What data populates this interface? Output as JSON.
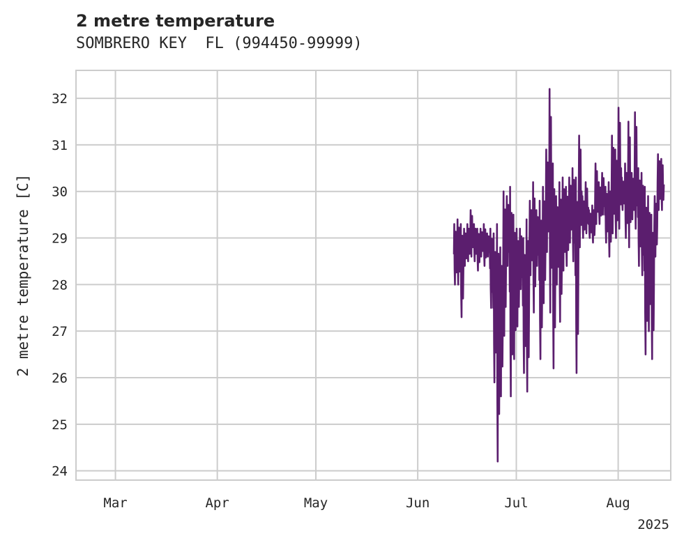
{
  "chart_data": {
    "type": "line",
    "title": "2 metre temperature",
    "subtitle": "SOMBRERO KEY  FL (994450-99999)",
    "xlabel": "",
    "ylabel": "2 metre temperature [C]",
    "x_ticks": [
      "Mar",
      "Apr",
      "May",
      "Jun",
      "Jul",
      "Aug"
    ],
    "x_tick_dates": [
      "2025-03-01",
      "2025-04-01",
      "2025-05-01",
      "2025-06-01",
      "2025-07-01",
      "2025-08-01"
    ],
    "x_offset_label": "2025",
    "xlim": [
      "2025-02-17",
      "2025-08-17"
    ],
    "ylim": [
      23.8,
      32.6
    ],
    "y_ticks": [
      24,
      25,
      26,
      27,
      28,
      29,
      30,
      31,
      32
    ],
    "grid": true,
    "series": [
      {
        "color": "#5b1e6e",
        "x": [
          "2025-06-12",
          "2025-06-13",
          "2025-06-14",
          "2025-06-15",
          "2025-06-16",
          "2025-06-17",
          "2025-06-18",
          "2025-06-19",
          "2025-06-20",
          "2025-06-21",
          "2025-06-22",
          "2025-06-23",
          "2025-06-24",
          "2025-06-25",
          "2025-06-26",
          "2025-06-27",
          "2025-06-28",
          "2025-06-29",
          "2025-06-30",
          "2025-07-01",
          "2025-07-02",
          "2025-07-03",
          "2025-07-04",
          "2025-07-05",
          "2025-07-06",
          "2025-07-07",
          "2025-07-08",
          "2025-07-09",
          "2025-07-10",
          "2025-07-11",
          "2025-07-12",
          "2025-07-13",
          "2025-07-14",
          "2025-07-15",
          "2025-07-16",
          "2025-07-17",
          "2025-07-18",
          "2025-07-19",
          "2025-07-20",
          "2025-07-21",
          "2025-07-22",
          "2025-07-23",
          "2025-07-24",
          "2025-07-25",
          "2025-07-26",
          "2025-07-27",
          "2025-07-28",
          "2025-07-29",
          "2025-07-30",
          "2025-07-31",
          "2025-08-01",
          "2025-08-02",
          "2025-08-03",
          "2025-08-04",
          "2025-08-05",
          "2025-08-06",
          "2025-08-07",
          "2025-08-08",
          "2025-08-09",
          "2025-08-10",
          "2025-08-11",
          "2025-08-12",
          "2025-08-13",
          "2025-08-14"
        ],
        "min": [
          28.0,
          28.0,
          27.3,
          28.4,
          28.5,
          28.6,
          28.5,
          28.3,
          28.6,
          28.4,
          28.6,
          27.5,
          25.9,
          24.2,
          25.6,
          26.9,
          28.4,
          25.6,
          26.4,
          27.1,
          27.9,
          26.1,
          25.7,
          28.2,
          27.4,
          28.4,
          26.4,
          27.6,
          28.7,
          27.4,
          26.2,
          28.0,
          27.2,
          28.3,
          28.4,
          28.9,
          28.5,
          26.1,
          28.8,
          29.0,
          29.1,
          29.0,
          28.9,
          29.3,
          29.3,
          29.5,
          28.9,
          28.6,
          29.1,
          29.0,
          29.2,
          29.6,
          29.0,
          28.8,
          29.4,
          29.2,
          28.4,
          28.2,
          26.5,
          27.0,
          26.4,
          28.6,
          29.6,
          29.6
        ],
        "max": [
          29.3,
          29.4,
          29.3,
          29.2,
          29.3,
          29.6,
          29.3,
          29.2,
          29.2,
          29.3,
          29.1,
          29.2,
          29.1,
          29.3,
          28.8,
          30.0,
          29.9,
          30.1,
          29.5,
          29.2,
          29.2,
          29.0,
          29.4,
          29.8,
          30.2,
          29.6,
          29.8,
          30.1,
          30.9,
          32.2,
          30.6,
          29.9,
          30.2,
          30.3,
          30.1,
          30.3,
          30.5,
          30.3,
          31.2,
          29.9,
          30.2,
          29.6,
          29.7,
          30.6,
          30.2,
          30.4,
          30.1,
          30.2,
          31.2,
          30.9,
          31.8,
          30.3,
          30.6,
          31.5,
          30.4,
          31.7,
          30.5,
          30.4,
          30.1,
          29.9,
          29.5,
          29.9,
          30.8,
          30.7
        ]
      }
    ]
  }
}
